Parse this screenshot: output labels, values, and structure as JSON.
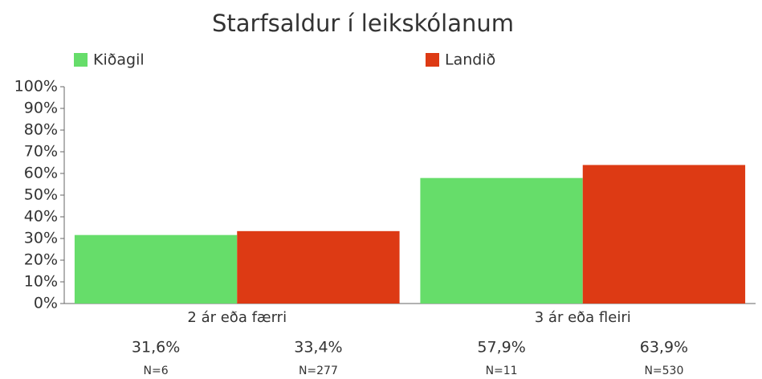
{
  "chart_data": {
    "type": "bar",
    "title": "Starfsaldur í leikskólanum",
    "categories": [
      "2 ár eða færri",
      "3 ár eða fleiri"
    ],
    "series": [
      {
        "name": "Kiðagil",
        "color": "#66dd6a",
        "values": [
          31.6,
          57.9
        ],
        "value_labels": [
          "31,6%",
          "57,9%"
        ],
        "n_labels": [
          "N=6",
          "N=11"
        ]
      },
      {
        "name": "Landið",
        "color": "#dd3a14",
        "values": [
          33.4,
          63.9
        ],
        "value_labels": [
          "33,4%",
          "63,9%"
        ],
        "n_labels": [
          "N=277",
          "N=530"
        ]
      }
    ],
    "ylim": [
      0,
      100
    ],
    "yticks": [
      {
        "value": 0,
        "label": "0%"
      },
      {
        "value": 10,
        "label": "10%"
      },
      {
        "value": 20,
        "label": "20%"
      },
      {
        "value": 30,
        "label": "30%"
      },
      {
        "value": 40,
        "label": "40%"
      },
      {
        "value": 50,
        "label": "50%"
      },
      {
        "value": 60,
        "label": "60%"
      },
      {
        "value": 70,
        "label": "70%"
      },
      {
        "value": 80,
        "label": "80%"
      },
      {
        "value": 90,
        "label": "90%"
      },
      {
        "value": 100,
        "label": "100%"
      }
    ],
    "grid": false,
    "legend": "top"
  }
}
